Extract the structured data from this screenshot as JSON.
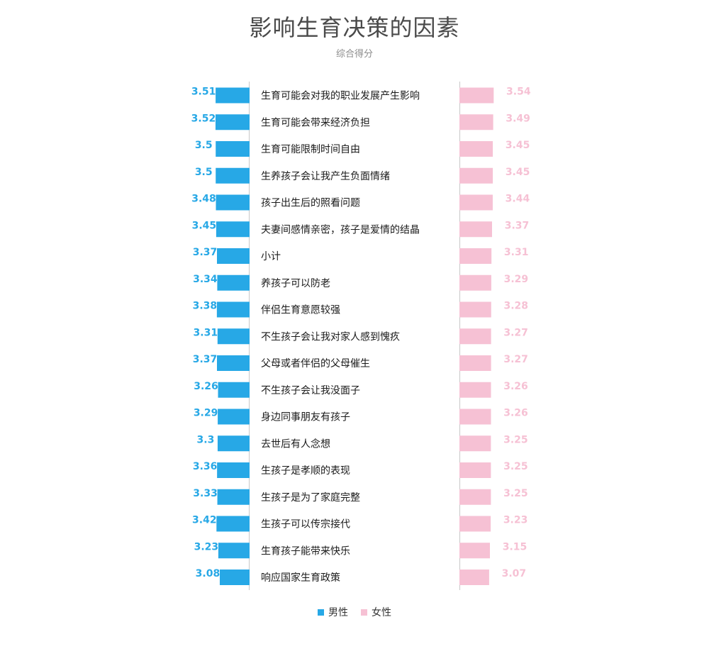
{
  "chart_data": {
    "type": "bar",
    "title": "影响生育决策的因素",
    "subtitle": "综合得分",
    "categories": [
      "生育可能会对我的职业发展产生影响",
      "生育可能会带来经济负担",
      "生育可能限制时间自由",
      "生养孩子会让我产生负面情绪",
      "孩子出生后的照看问题",
      "夫妻间感情亲密，孩子是爱情的结晶",
      "小计",
      "养孩子可以防老",
      "伴侣生育意愿较强",
      "不生孩子会让我对家人感到愧疚",
      "父母或者伴侣的父母催生",
      "不生孩子会让我没面子",
      "身边同事朋友有孩子",
      "去世后有人念想",
      "生孩子是孝顺的表现",
      "生孩子是为了家庭完整",
      "生孩子可以传宗接代",
      "生育孩子能带来快乐",
      "响应国家生育政策"
    ],
    "series": [
      {
        "name": "男性",
        "color": "#27a8e6",
        "values": [
          3.51,
          3.52,
          3.5,
          3.5,
          3.48,
          3.45,
          3.37,
          3.34,
          3.38,
          3.31,
          3.37,
          3.26,
          3.29,
          3.3,
          3.36,
          3.33,
          3.42,
          3.23,
          3.08
        ],
        "labels": [
          "3.51",
          "3.52",
          "3.5",
          "3.5",
          "3.48",
          "3.45",
          "3.37",
          "3.34",
          "3.38",
          "3.31",
          "3.37",
          "3.26",
          "3.29",
          "3.3",
          "3.36",
          "3.33",
          "3.42",
          "3.23",
          "3.08"
        ]
      },
      {
        "name": "女性",
        "color": "#f6c1d4",
        "values": [
          3.54,
          3.49,
          3.45,
          3.45,
          3.44,
          3.37,
          3.31,
          3.29,
          3.28,
          3.27,
          3.27,
          3.26,
          3.26,
          3.25,
          3.25,
          3.25,
          3.23,
          3.15,
          3.07
        ],
        "labels": [
          "3.54",
          "3.49",
          "3.45",
          "3.45",
          "3.44",
          "3.37",
          "3.31",
          "3.29",
          "3.28",
          "3.27",
          "3.27",
          "3.26",
          "3.26",
          "3.25",
          "3.25",
          "3.25",
          "3.23",
          "3.15",
          "3.07"
        ]
      }
    ],
    "legend_position": "bottom-center",
    "grid": false
  }
}
